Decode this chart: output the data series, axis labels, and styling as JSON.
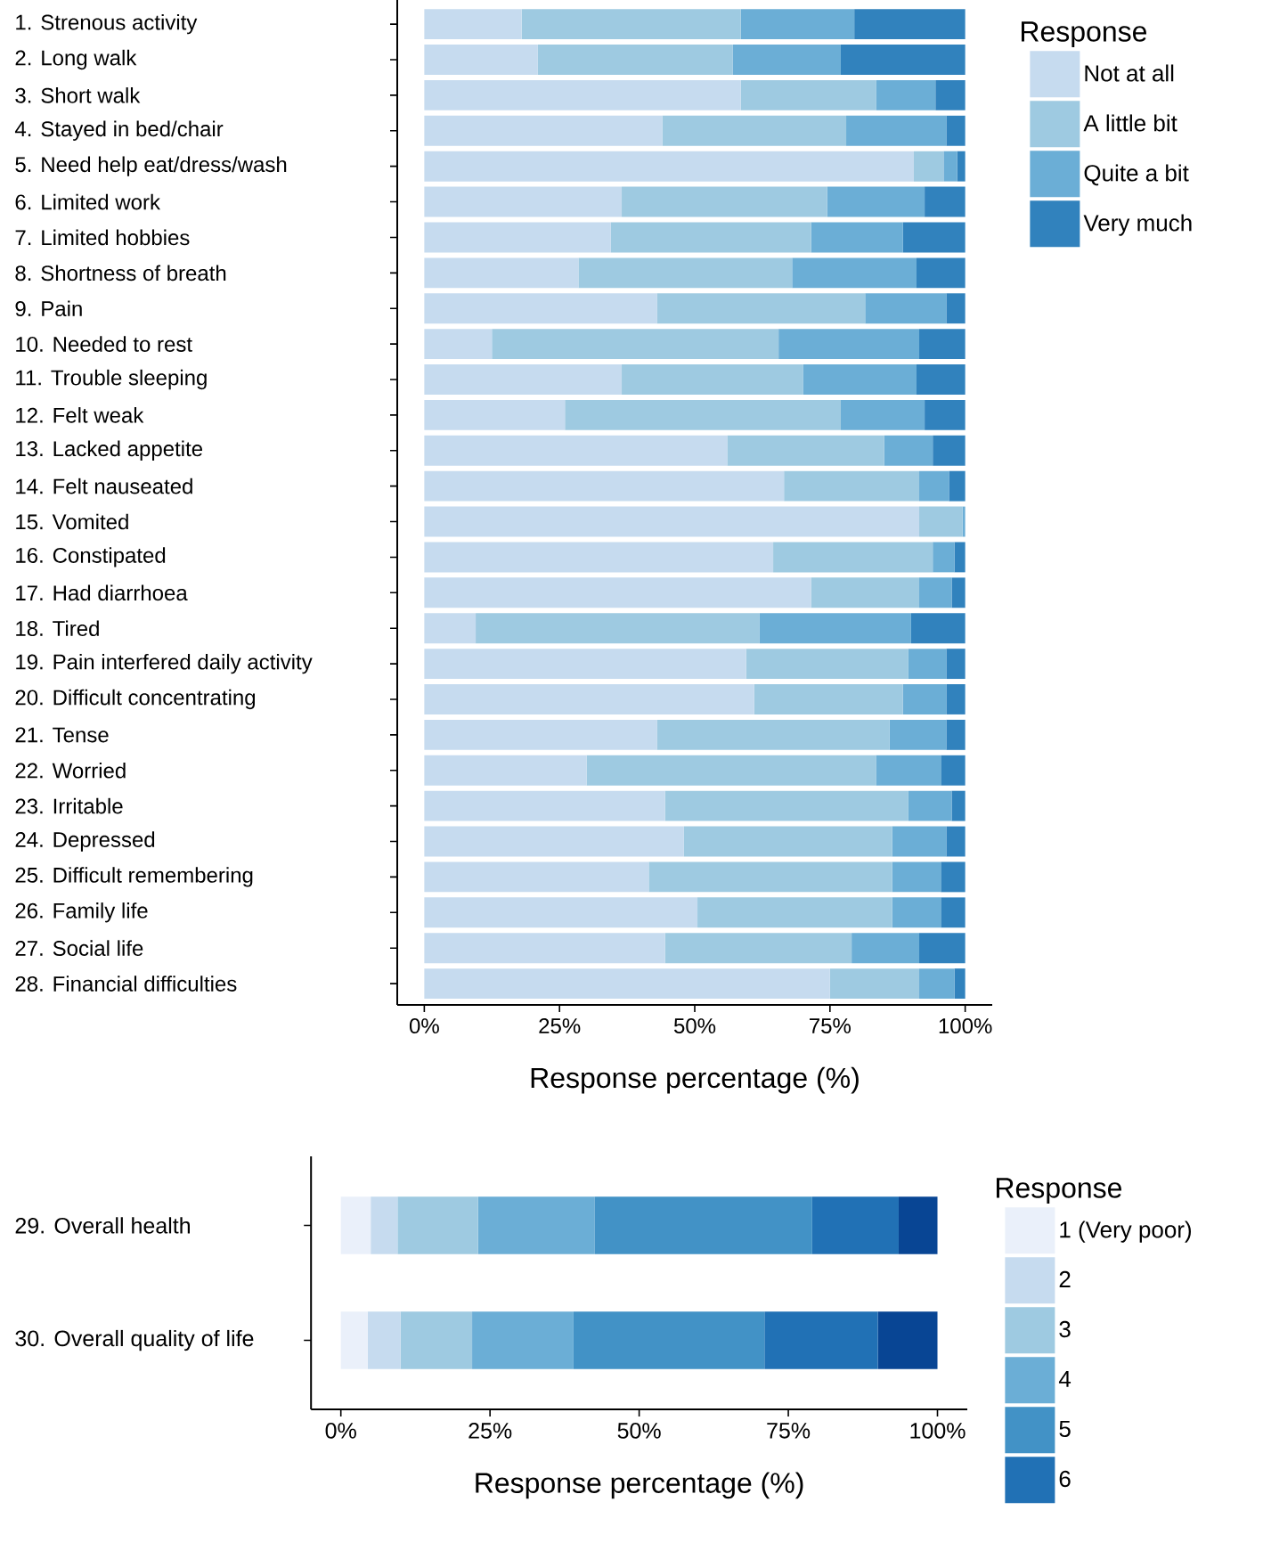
{
  "chart_data": [
    {
      "type": "bar",
      "orientation": "horizontal",
      "stacked": true,
      "legend": "right",
      "legend_title": "Response",
      "xlabel": "Response percentage (%)",
      "categories": [
        "1. Strenous activity",
        "2. Long walk",
        "3. Short walk",
        "4. Stayed in bed/chair",
        "5. Need help eat/dress/wash",
        "6. Limited work",
        "7. Limited hobbies",
        "8. Shortness of breath",
        "9. Pain",
        "10. Needed to rest",
        "11. Trouble sleeping",
        "12. Felt weak",
        "13. Lacked appetite",
        "14. Felt nauseated",
        "15. Vomited",
        "16. Constipated",
        "17. Had diarrhoea",
        "18. Tired",
        "19. Pain interfered daily activity",
        "20. Difficult concentrating",
        "21. Tense",
        "22. Worried",
        "23. Irritable",
        "24. Depressed",
        "25. Difficult remembering",
        "26. Family life",
        "27. Social life",
        "28. Financial difficulties"
      ],
      "series": [
        {
          "name": "Not at all",
          "color": "#c6dbef",
          "values": [
            18,
            21,
            58.5,
            44,
            90.5,
            36.5,
            34.5,
            28.5,
            43,
            12.5,
            36.5,
            26,
            56,
            66.5,
            91.5,
            64.5,
            71.5,
            9.5,
            59.5,
            61,
            43,
            30,
            44.5,
            48,
            41.5,
            50.5,
            44.5,
            75
          ]
        },
        {
          "name": "A little bit",
          "color": "#9ecae1",
          "values": [
            40.5,
            36,
            25,
            34,
            5.5,
            38,
            37,
            39.5,
            38.5,
            53,
            33.5,
            51,
            29,
            25,
            8,
            29.5,
            20,
            52.5,
            30,
            27.5,
            43,
            53.5,
            45,
            38.5,
            45,
            36,
            34.5,
            16.5
          ]
        },
        {
          "name": "Quite a bit",
          "color": "#6baed6",
          "values": [
            21,
            20,
            11,
            18.5,
            2.5,
            18,
            17,
            23,
            15,
            26,
            21,
            15.5,
            9,
            5.5,
            0.5,
            4,
            6,
            28,
            7,
            8,
            10.5,
            12,
            8,
            10,
            9,
            9,
            12.5,
            6.5
          ]
        },
        {
          "name": "Very much",
          "color": "#3182bd",
          "values": [
            20.5,
            23,
            5.5,
            3.5,
            1.5,
            7.5,
            11.5,
            9,
            3.5,
            8.5,
            9,
            7.5,
            6,
            3,
            0,
            2,
            2.5,
            10,
            3.5,
            3.5,
            3.5,
            4.5,
            2.5,
            3.5,
            4.5,
            4.5,
            8.5,
            2
          ]
        }
      ],
      "xlim": [
        -5,
        105
      ],
      "xticks": [
        {
          "value": 0,
          "label": "0%"
        },
        {
          "value": 25,
          "label": "25%"
        },
        {
          "value": 50,
          "label": "50%"
        },
        {
          "value": 75,
          "label": "75%"
        },
        {
          "value": 100,
          "label": "100%"
        }
      ]
    },
    {
      "type": "bar",
      "orientation": "horizontal",
      "stacked": true,
      "legend": "right",
      "legend_title": "Response",
      "xlabel": "Response percentage (%)",
      "categories": [
        "29. Overall health",
        "30. Overall quality of life"
      ],
      "series": [
        {
          "name": "1 (Very poor)",
          "color": "#eaf0fa",
          "values": [
            5,
            4.5
          ]
        },
        {
          "name": "2",
          "color": "#c6dbef",
          "values": [
            4.5,
            5.5
          ]
        },
        {
          "name": "3",
          "color": "#9ecae1",
          "values": [
            13.5,
            12
          ]
        },
        {
          "name": "4",
          "color": "#6baed6",
          "values": [
            19.5,
            17
          ]
        },
        {
          "name": "5",
          "color": "#4292c6",
          "values": [
            36.5,
            32
          ]
        },
        {
          "name": "6",
          "color": "#2171b5",
          "values": [
            14.5,
            19
          ]
        },
        {
          "color": "#084594",
          "values": [
            6.5,
            10
          ]
        }
      ],
      "xlim": [
        -5,
        105
      ],
      "xticks": [
        {
          "value": 0,
          "label": "0%"
        },
        {
          "value": 25,
          "label": "25%"
        },
        {
          "value": 50,
          "label": "50%"
        },
        {
          "value": 75,
          "label": "75%"
        },
        {
          "value": 100,
          "label": "100%"
        }
      ]
    }
  ]
}
